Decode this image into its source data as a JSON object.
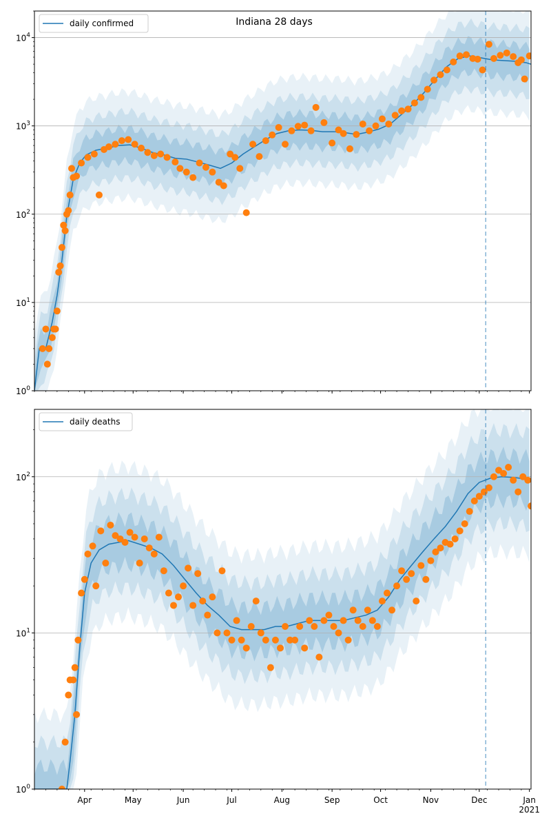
{
  "chart_data": [
    {
      "type": "line",
      "title": "Indiana 28 days",
      "yscale": "log",
      "ylim": [
        1,
        20000
      ],
      "xlim": [
        "2020-03-01",
        "2021-01-02"
      ],
      "x_tick_labels": [
        "Apr",
        "May",
        "Jun",
        "Jul",
        "Aug",
        "Sep",
        "Oct",
        "Nov",
        "Dec",
        "Jan\n2021"
      ],
      "y_tick_labels": [
        "10^0",
        "10^1",
        "10^2",
        "10^3",
        "10^4"
      ],
      "grid": "horizontal",
      "legend": {
        "position": "top-left",
        "entries": [
          "daily confirmed"
        ]
      },
      "forecast_start": "2020-12-05",
      "series": [
        {
          "name": "daily confirmed",
          "style": "line",
          "color": "#1f77b4",
          "x": [
            "2020-03-01",
            "2020-03-04",
            "2020-03-08",
            "2020-03-12",
            "2020-03-15",
            "2020-03-18",
            "2020-03-21",
            "2020-03-25",
            "2020-03-29",
            "2020-04-02",
            "2020-04-08",
            "2020-04-15",
            "2020-04-22",
            "2020-04-29",
            "2020-05-06",
            "2020-05-13",
            "2020-05-20",
            "2020-05-27",
            "2020-06-03",
            "2020-06-10",
            "2020-06-17",
            "2020-06-24",
            "2020-07-01",
            "2020-07-08",
            "2020-07-15",
            "2020-07-22",
            "2020-07-29",
            "2020-08-05",
            "2020-08-12",
            "2020-08-19",
            "2020-08-26",
            "2020-09-02",
            "2020-09-09",
            "2020-09-16",
            "2020-09-23",
            "2020-09-30",
            "2020-10-07",
            "2020-10-14",
            "2020-10-21",
            "2020-10-28",
            "2020-11-04",
            "2020-11-11",
            "2020-11-18",
            "2020-11-25",
            "2020-12-02",
            "2020-12-09",
            "2020-12-16",
            "2020-12-23",
            "2020-12-30",
            "2021-01-02"
          ],
          "values": [
            1,
            3,
            3,
            6,
            12,
            30,
            95,
            250,
            380,
            470,
            530,
            560,
            600,
            610,
            560,
            500,
            470,
            430,
            420,
            390,
            360,
            330,
            380,
            480,
            580,
            700,
            820,
            880,
            900,
            890,
            860,
            860,
            840,
            800,
            850,
            920,
            1050,
            1350,
            1750,
            2400,
            3400,
            4700,
            5800,
            6200,
            5900,
            5600,
            5500,
            5400,
            5200,
            5000
          ]
        },
        {
          "name": "",
          "style": "points",
          "color": "#ff7f0e",
          "x": [
            "2020-03-06",
            "2020-03-08",
            "2020-03-09",
            "2020-03-10",
            "2020-03-12",
            "2020-03-13",
            "2020-03-14",
            "2020-03-15",
            "2020-03-16",
            "2020-03-17",
            "2020-03-18",
            "2020-03-19",
            "2020-03-20",
            "2020-03-21",
            "2020-03-22",
            "2020-03-23",
            "2020-03-24",
            "2020-03-25",
            "2020-03-27",
            "2020-03-30",
            "2020-04-03",
            "2020-04-07",
            "2020-04-10",
            "2020-04-13",
            "2020-04-16",
            "2020-04-20",
            "2020-04-24",
            "2020-04-28",
            "2020-05-02",
            "2020-05-06",
            "2020-05-10",
            "2020-05-14",
            "2020-05-18",
            "2020-05-22",
            "2020-05-27",
            "2020-05-30",
            "2020-06-03",
            "2020-06-07",
            "2020-06-11",
            "2020-06-15",
            "2020-06-19",
            "2020-06-23",
            "2020-06-26",
            "2020-06-30",
            "2020-07-03",
            "2020-07-06",
            "2020-07-10",
            "2020-07-14",
            "2020-07-18",
            "2020-07-22",
            "2020-07-26",
            "2020-07-30",
            "2020-08-03",
            "2020-08-07",
            "2020-08-11",
            "2020-08-15",
            "2020-08-19",
            "2020-08-22",
            "2020-08-27",
            "2020-09-01",
            "2020-09-05",
            "2020-09-08",
            "2020-09-12",
            "2020-09-16",
            "2020-09-20",
            "2020-09-24",
            "2020-09-28",
            "2020-10-02",
            "2020-10-06",
            "2020-10-10",
            "2020-10-14",
            "2020-10-18",
            "2020-10-22",
            "2020-10-26",
            "2020-10-30",
            "2020-11-03",
            "2020-11-07",
            "2020-11-11",
            "2020-11-15",
            "2020-11-19",
            "2020-11-23",
            "2020-11-27",
            "2020-11-30",
            "2020-12-03",
            "2020-12-07",
            "2020-12-10",
            "2020-12-14",
            "2020-12-18",
            "2020-12-22",
            "2020-12-25",
            "2020-12-27",
            "2020-12-29",
            "2021-01-01"
          ],
          "values": [
            3,
            5,
            2,
            3,
            4,
            5,
            5,
            8,
            22,
            26,
            42,
            75,
            65,
            100,
            110,
            165,
            330,
            260,
            270,
            380,
            440,
            480,
            165,
            540,
            580,
            620,
            680,
            700,
            620,
            560,
            500,
            460,
            480,
            440,
            390,
            330,
            300,
            260,
            380,
            340,
            300,
            230,
            210,
            480,
            440,
            330,
            104,
            620,
            450,
            680,
            790,
            960,
            620,
            880,
            990,
            1020,
            880,
            1620,
            1090,
            640,
            900,
            820,
            550,
            800,
            1050,
            880,
            1000,
            1200,
            1050,
            1320,
            1480,
            1550,
            1820,
            2100,
            2600,
            3300,
            3800,
            4300,
            5300,
            6200,
            6400,
            5800,
            5700,
            4300,
            8400,
            5800,
            6300,
            6700,
            6100,
            5200,
            5600,
            3400,
            6200
          ]
        }
      ]
    },
    {
      "type": "line",
      "title": "",
      "yscale": "log",
      "ylim": [
        1,
        270
      ],
      "xlim": [
        "2020-03-01",
        "2021-01-02"
      ],
      "x_tick_labels": [
        "Apr",
        "May",
        "Jun",
        "Jul",
        "Aug",
        "Sep",
        "Oct",
        "Nov",
        "Dec",
        "Jan\n2021"
      ],
      "y_tick_labels": [
        "10^0",
        "10^1",
        "10^2"
      ],
      "grid": "horizontal",
      "legend": {
        "position": "top-left",
        "entries": [
          "daily deaths"
        ]
      },
      "forecast_start": "2020-12-05",
      "series": [
        {
          "name": "daily deaths",
          "style": "line",
          "color": "#1f77b4",
          "x": [
            "2020-03-01",
            "2020-03-21",
            "2020-03-23",
            "2020-03-26",
            "2020-03-29",
            "2020-04-01",
            "2020-04-05",
            "2020-04-10",
            "2020-04-16",
            "2020-04-22",
            "2020-04-28",
            "2020-05-05",
            "2020-05-12",
            "2020-05-19",
            "2020-05-26",
            "2020-06-02",
            "2020-06-09",
            "2020-06-16",
            "2020-06-23",
            "2020-06-30",
            "2020-07-07",
            "2020-07-14",
            "2020-07-21",
            "2020-07-28",
            "2020-08-04",
            "2020-08-11",
            "2020-08-18",
            "2020-08-25",
            "2020-09-01",
            "2020-09-08",
            "2020-09-15",
            "2020-09-22",
            "2020-09-29",
            "2020-10-06",
            "2020-10-13",
            "2020-10-20",
            "2020-10-27",
            "2020-11-03",
            "2020-11-10",
            "2020-11-17",
            "2020-11-24",
            "2020-12-01",
            "2020-12-08",
            "2020-12-15",
            "2020-12-22",
            "2020-12-29",
            "2021-01-02"
          ],
          "values": [
            1,
            1,
            1.5,
            3,
            8,
            18,
            28,
            34,
            37,
            38,
            39,
            37,
            35,
            32,
            27,
            22,
            18,
            15,
            13,
            11,
            10.5,
            10.5,
            10.5,
            11,
            11,
            11.5,
            12,
            12,
            12,
            12,
            12.5,
            13,
            14,
            17,
            22,
            27,
            33,
            40,
            48,
            60,
            78,
            92,
            98,
            100,
            99,
            97,
            95
          ]
        },
        {
          "name": "",
          "style": "points",
          "color": "#ff7f0e",
          "x": [
            "2020-03-18",
            "2020-03-20",
            "2020-03-22",
            "2020-03-23",
            "2020-03-25",
            "2020-03-26",
            "2020-03-27",
            "2020-03-28",
            "2020-03-30",
            "2020-04-01",
            "2020-04-03",
            "2020-04-06",
            "2020-04-08",
            "2020-04-11",
            "2020-04-14",
            "2020-04-17",
            "2020-04-20",
            "2020-04-23",
            "2020-04-26",
            "2020-04-29",
            "2020-05-02",
            "2020-05-05",
            "2020-05-08",
            "2020-05-11",
            "2020-05-14",
            "2020-05-17",
            "2020-05-20",
            "2020-05-23",
            "2020-05-26",
            "2020-05-29",
            "2020-06-01",
            "2020-06-04",
            "2020-06-07",
            "2020-06-10",
            "2020-06-13",
            "2020-06-16",
            "2020-06-19",
            "2020-06-22",
            "2020-06-25",
            "2020-06-28",
            "2020-07-01",
            "2020-07-04",
            "2020-07-07",
            "2020-07-10",
            "2020-07-13",
            "2020-07-16",
            "2020-07-19",
            "2020-07-22",
            "2020-07-25",
            "2020-07-28",
            "2020-07-31",
            "2020-08-03",
            "2020-08-06",
            "2020-08-09",
            "2020-08-12",
            "2020-08-15",
            "2020-08-18",
            "2020-08-21",
            "2020-08-24",
            "2020-08-27",
            "2020-08-30",
            "2020-09-02",
            "2020-09-05",
            "2020-09-08",
            "2020-09-11",
            "2020-09-14",
            "2020-09-17",
            "2020-09-20",
            "2020-09-23",
            "2020-09-26",
            "2020-09-29",
            "2020-10-02",
            "2020-10-05",
            "2020-10-08",
            "2020-10-11",
            "2020-10-14",
            "2020-10-17",
            "2020-10-20",
            "2020-10-23",
            "2020-10-26",
            "2020-10-29",
            "2020-11-01",
            "2020-11-04",
            "2020-11-07",
            "2020-11-10",
            "2020-11-13",
            "2020-11-16",
            "2020-11-19",
            "2020-11-22",
            "2020-11-25",
            "2020-11-28",
            "2020-12-01",
            "2020-12-04",
            "2020-12-07",
            "2020-12-10",
            "2020-12-13",
            "2020-12-16",
            "2020-12-19",
            "2020-12-22",
            "2020-12-25",
            "2020-12-28",
            "2020-12-31",
            "2021-01-02"
          ],
          "values": [
            1,
            2,
            4,
            5,
            5,
            6,
            3,
            9,
            18,
            22,
            32,
            36,
            20,
            45,
            28,
            49,
            42,
            40,
            38,
            44,
            41,
            28,
            40,
            35,
            32,
            41,
            25,
            18,
            15,
            17,
            20,
            26,
            15,
            24,
            16,
            13,
            17,
            10,
            25,
            10,
            9,
            12,
            9,
            8,
            11,
            16,
            10,
            9,
            6,
            9,
            8,
            11,
            9,
            9,
            11,
            8,
            12,
            11,
            7,
            12,
            13,
            11,
            10,
            12,
            9,
            14,
            12,
            11,
            14,
            12,
            11,
            16,
            18,
            14,
            20,
            25,
            22,
            24,
            16,
            27,
            22,
            29,
            33,
            35,
            38,
            37,
            40,
            45,
            50,
            60,
            70,
            75,
            80,
            85,
            100,
            110,
            105,
            115,
            95,
            80,
            100,
            95,
            65
          ]
        }
      ]
    }
  ]
}
